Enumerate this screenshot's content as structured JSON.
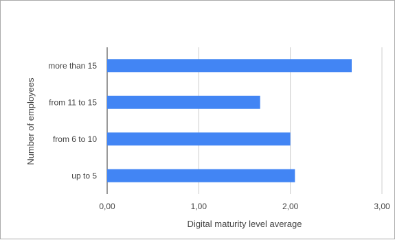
{
  "chart_data": {
    "type": "bar",
    "orientation": "horizontal",
    "categories": [
      "more than 15",
      "from 11 to 15",
      "from 6 to 10",
      "up to 5"
    ],
    "values": [
      2.67,
      1.67,
      2.0,
      2.05
    ],
    "xlabel": "Digital maturity level average",
    "ylabel": "Number  of employees",
    "xlim": [
      0,
      3
    ],
    "xticks": [
      0,
      1,
      2,
      3
    ],
    "xtick_labels": [
      "0,00",
      "1,00",
      "2,00",
      "3,00"
    ],
    "grid": "vertical",
    "legend": "none",
    "bar_color": "#4285f4",
    "grid_color": "#cccccc"
  }
}
